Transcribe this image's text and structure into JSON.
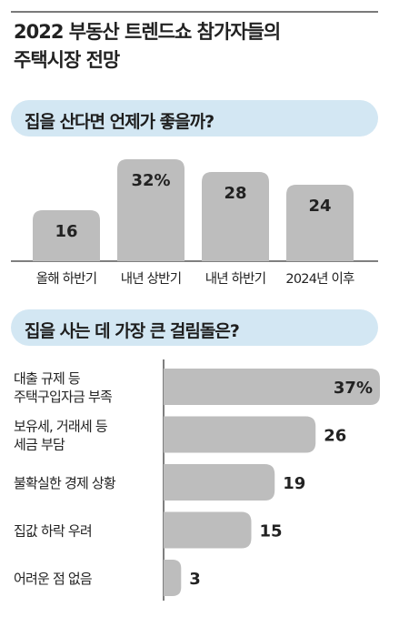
{
  "title_lines": [
    "2022 부동산 트렌드쇼 참가자들의",
    "주택시장 전망"
  ],
  "colors": {
    "bar": "#bdbdbd",
    "pill": "#d3e7f3",
    "rule": "#7a7a7a"
  },
  "chart_data": [
    {
      "type": "bar",
      "title": "집을 산다면 언제가 좋을까?",
      "categories": [
        "올해 하반기",
        "내년 상반기",
        "내년 하반기",
        "2024년 이후"
      ],
      "values": [
        16,
        32,
        28,
        24
      ],
      "value_labels": [
        "16",
        "32%",
        "28",
        "24"
      ],
      "ylim": [
        0,
        32
      ]
    },
    {
      "type": "bar",
      "orientation": "horizontal",
      "title": "집을 사는 데 가장 큰 걸림돌은?",
      "categories": [
        [
          "대출 규제 등",
          "주택구입자금 부족"
        ],
        [
          "보유세, 거래세 등",
          "세금 부담"
        ],
        [
          "불확실한 경제 상황"
        ],
        [
          "집값 하락 우려"
        ],
        [
          "어려운 점 없음"
        ]
      ],
      "values": [
        37,
        26,
        19,
        15,
        3
      ],
      "value_labels": [
        "37%",
        "26",
        "19",
        "15",
        "3"
      ],
      "xlim": [
        0,
        37
      ]
    }
  ]
}
